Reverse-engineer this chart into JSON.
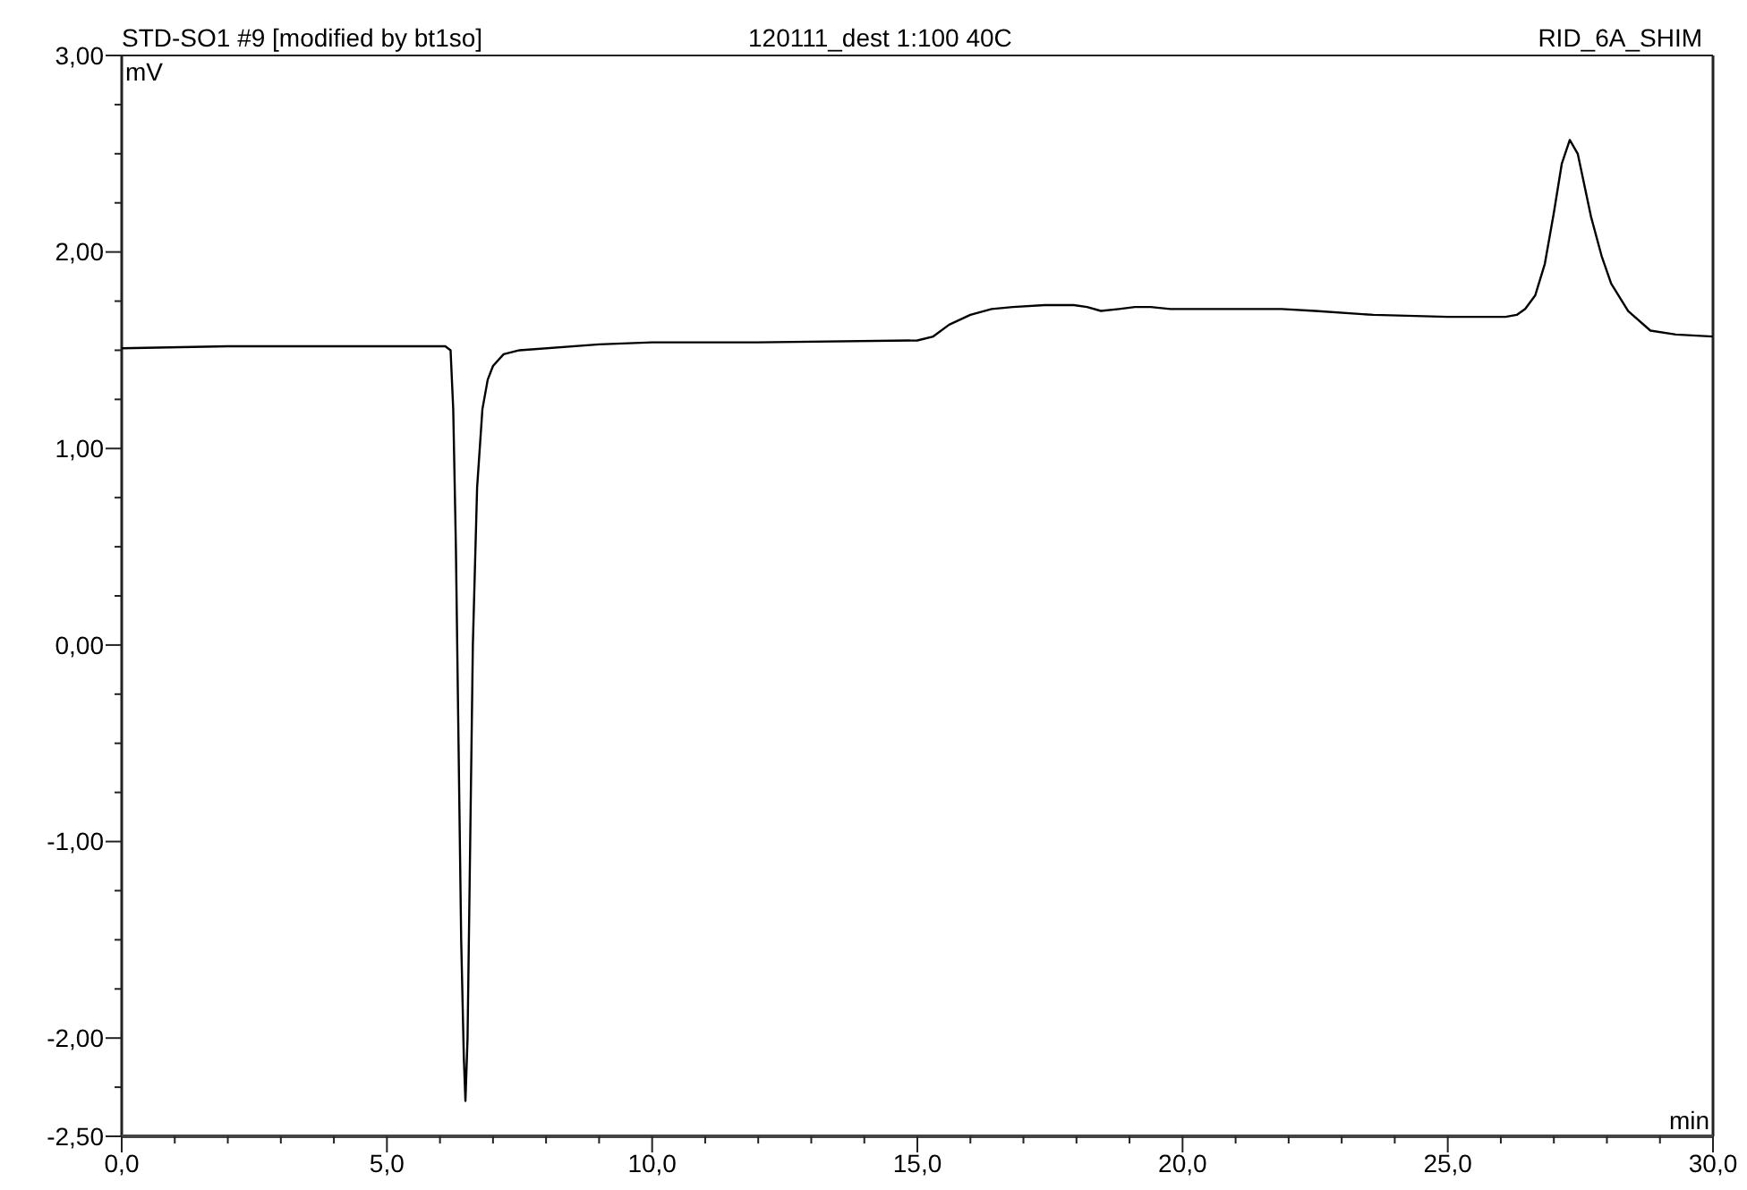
{
  "chart_data": {
    "type": "line",
    "title": "STD-SO1 #9 [modified by bt1so]",
    "subtitle": "120111_dest 1:100 40C",
    "annotations": [
      "RID_6A_SHIM"
    ],
    "xlabel": "min",
    "ylabel": "mV",
    "xlim": [
      0,
      30
    ],
    "ylim": [
      -2.5,
      3
    ],
    "xticks": [
      {
        "value": 0,
        "label": "0,0"
      },
      {
        "value": 1,
        "label": null
      },
      {
        "value": 2,
        "label": null
      },
      {
        "value": 3,
        "label": null
      },
      {
        "value": 4,
        "label": null
      },
      {
        "value": 5,
        "label": "5,0"
      },
      {
        "value": 6,
        "label": null
      },
      {
        "value": 7,
        "label": null
      },
      {
        "value": 8,
        "label": null
      },
      {
        "value": 9,
        "label": null
      },
      {
        "value": 10,
        "label": "10,0"
      },
      {
        "value": 11,
        "label": null
      },
      {
        "value": 12,
        "label": null
      },
      {
        "value": 13,
        "label": null
      },
      {
        "value": 14,
        "label": null
      },
      {
        "value": 15,
        "label": "15,0"
      },
      {
        "value": 16,
        "label": null
      },
      {
        "value": 17,
        "label": null
      },
      {
        "value": 18,
        "label": null
      },
      {
        "value": 19,
        "label": null
      },
      {
        "value": 20,
        "label": "20,0"
      },
      {
        "value": 21,
        "label": null
      },
      {
        "value": 22,
        "label": null
      },
      {
        "value": 23,
        "label": null
      },
      {
        "value": 24,
        "label": null
      },
      {
        "value": 25,
        "label": "25,0"
      },
      {
        "value": 26,
        "label": null
      },
      {
        "value": 27,
        "label": null
      },
      {
        "value": 28,
        "label": null
      },
      {
        "value": 29,
        "label": null
      },
      {
        "value": 30,
        "label": "30,0"
      }
    ],
    "yticks": [
      {
        "value": -2.5,
        "label": "-2,50"
      },
      {
        "value": -2.25,
        "label": null
      },
      {
        "value": -2,
        "label": "-2,00"
      },
      {
        "value": -1.75,
        "label": null
      },
      {
        "value": -1.5,
        "label": null
      },
      {
        "value": -1.25,
        "label": null
      },
      {
        "value": -1,
        "label": "-1,00"
      },
      {
        "value": -0.75,
        "label": null
      },
      {
        "value": -0.5,
        "label": null
      },
      {
        "value": -0.25,
        "label": null
      },
      {
        "value": 0,
        "label": "0,00"
      },
      {
        "value": 0.25,
        "label": null
      },
      {
        "value": 0.5,
        "label": null
      },
      {
        "value": 0.75,
        "label": null
      },
      {
        "value": 1,
        "label": "1,00"
      },
      {
        "value": 1.25,
        "label": null
      },
      {
        "value": 1.5,
        "label": null
      },
      {
        "value": 1.75,
        "label": null
      },
      {
        "value": 2,
        "label": "2,00"
      },
      {
        "value": 2.25,
        "label": null
      },
      {
        "value": 2.5,
        "label": null
      },
      {
        "value": 2.75,
        "label": null
      },
      {
        "value": 3,
        "label": "3,00"
      }
    ],
    "grid": false,
    "marker": "none",
    "line_style": "solid",
    "series": [
      {
        "color": "#000000",
        "x": [
          0,
          2,
          4,
          6,
          6.1,
          6.2,
          6.25,
          6.3,
          6.35,
          6.4,
          6.45,
          6.48,
          6.52,
          6.57,
          6.62,
          6.7,
          6.8,
          6.9,
          7,
          7.2,
          7.5,
          9,
          10,
          12,
          15,
          15.3,
          15.6,
          16,
          16.4,
          16.8,
          17.4,
          17.95,
          18.2,
          18.46,
          18.8,
          19.1,
          19.4,
          19.77,
          21,
          21.87,
          22.5,
          23.6,
          25,
          26.09,
          26.3,
          26.46,
          26.65,
          26.83,
          27,
          27.15,
          27.3,
          27.45,
          27.7,
          27.9,
          28.08,
          28.4,
          28.82,
          29.3,
          30
        ],
        "values": [
          1.51,
          1.52,
          1.52,
          1.52,
          1.52,
          1.5,
          1.2,
          0.5,
          -0.5,
          -1.5,
          -2.1,
          -2.32,
          -2,
          -1,
          0,
          0.8,
          1.2,
          1.35,
          1.42,
          1.48,
          1.5,
          1.53,
          1.54,
          1.54,
          1.55,
          1.57,
          1.63,
          1.68,
          1.71,
          1.72,
          1.73,
          1.73,
          1.72,
          1.7,
          1.71,
          1.72,
          1.72,
          1.71,
          1.71,
          1.71,
          1.7,
          1.68,
          1.67,
          1.67,
          1.68,
          1.71,
          1.78,
          1.94,
          2.2,
          2.45,
          2.57,
          2.5,
          2.18,
          1.98,
          1.84,
          1.7,
          1.6,
          1.58,
          1.57
        ]
      }
    ]
  }
}
